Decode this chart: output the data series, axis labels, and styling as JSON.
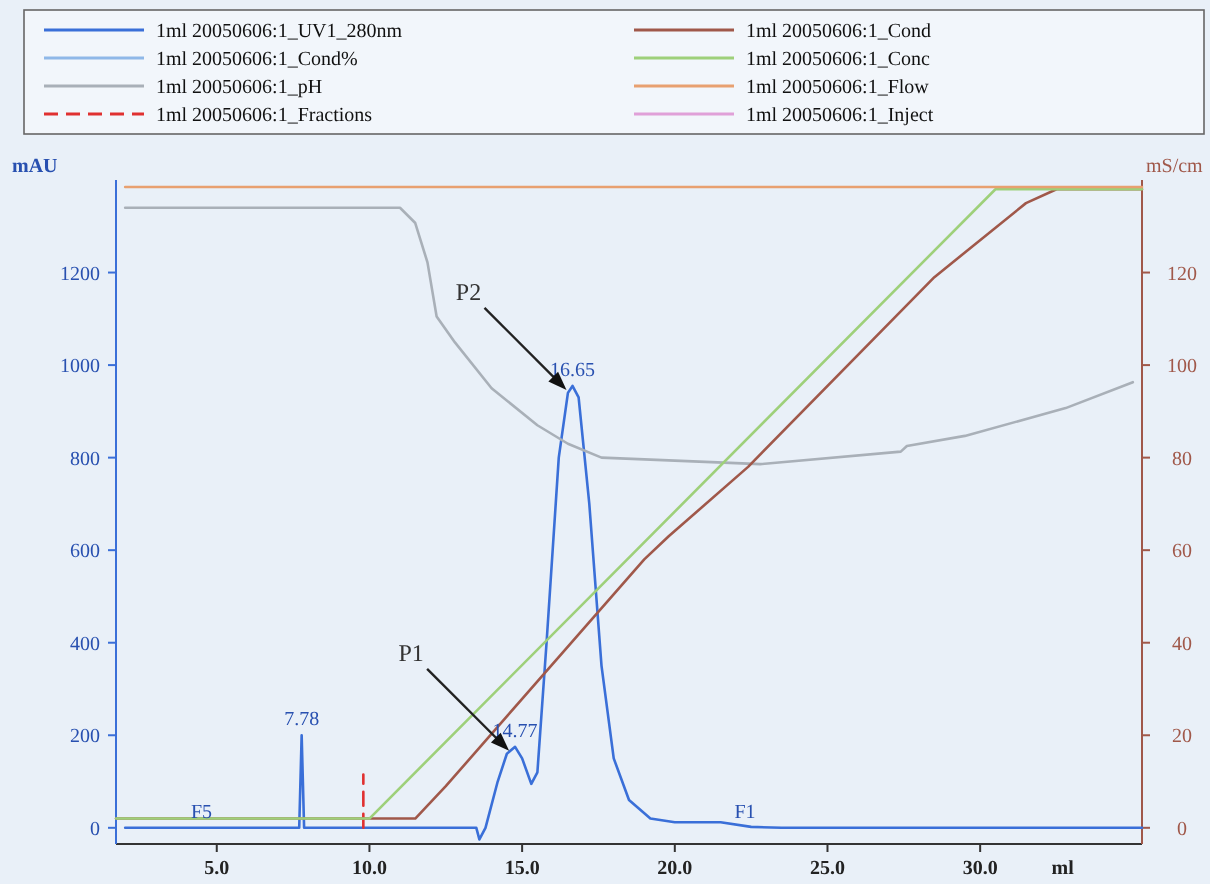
{
  "chart_data": {
    "type": "line",
    "xlabel": "ml",
    "ylabel": "mAU",
    "y2label": "mS/cm",
    "xlim": [
      1.7,
      35.3
    ],
    "ylim": [
      -35,
      1400
    ],
    "y2lim": [
      -3.5,
      140
    ],
    "xticks": [
      {
        "value": 5,
        "label": "5.0"
      },
      {
        "value": 10,
        "label": "10.0"
      },
      {
        "value": 15,
        "label": "15.0"
      },
      {
        "value": 20,
        "label": "20.0"
      },
      {
        "value": 25,
        "label": "25.0"
      },
      {
        "value": 30,
        "label": "30.0"
      }
    ],
    "yticks": [
      0,
      200,
      400,
      600,
      800,
      1000,
      1200
    ],
    "y2ticks": [
      0,
      20,
      40,
      60,
      80,
      100,
      120
    ],
    "grid": false,
    "legend": "top",
    "marker": "none",
    "series": [
      {
        "name": "1ml 20050606:1_UV1_280nm",
        "color": "#3a6fd8",
        "x": [
          2,
          7.7,
          7.78,
          7.86,
          13.5,
          13.6,
          13.8,
          14.2,
          14.5,
          14.77,
          15.0,
          15.3,
          15.5,
          15.8,
          16.2,
          16.5,
          16.65,
          16.85,
          17.2,
          17.6,
          18.0,
          18.5,
          19.2,
          20.0,
          21.5,
          22.5,
          23.5,
          35.3
        ],
        "values": [
          0,
          0,
          200,
          0,
          0,
          -25,
          0,
          100,
          160,
          175,
          150,
          95,
          120,
          400,
          800,
          940,
          955,
          930,
          700,
          350,
          150,
          60,
          20,
          12,
          12,
          2,
          0,
          0
        ]
      },
      {
        "name": "1ml 20050606:1_Cond%",
        "color": "#8fb8e8"
      },
      {
        "name": "1ml 20050606:1_pH",
        "color": "#a9b0b8",
        "x": [
          2.0,
          11.0,
          11.5,
          11.9,
          12.2,
          12.8,
          14.0,
          15.5,
          16.5,
          17.6,
          22.8,
          27.4,
          27.6,
          29.5,
          32.8,
          35.0
        ],
        "values": [
          1340,
          1340,
          1307,
          1222,
          1105,
          1049,
          950,
          870,
          830,
          800,
          786,
          813,
          825,
          847,
          907,
          963
        ]
      },
      {
        "name": "1ml 20050606:1_Fractions",
        "color": "#e03030",
        "line_style": "dashed",
        "x": [
          9.8,
          9.8
        ],
        "values": [
          0,
          115
        ]
      },
      {
        "name": "1ml 20050606:1_Cond",
        "color": "#a0584a",
        "axis": "y2",
        "x": [
          1.7,
          11.5,
          12.5,
          19.0,
          19.8,
          22.4,
          28.5,
          31.5,
          32.5,
          35.3
        ],
        "values": [
          2,
          2,
          9,
          58,
          63,
          78,
          119,
          135,
          138,
          138
        ]
      },
      {
        "name": "1ml 20050606:1_Conc",
        "color": "#9ed07a",
        "axis": "y2",
        "x": [
          1.7,
          10.0,
          30.5,
          35.3
        ],
        "values": [
          2,
          2,
          138,
          138
        ]
      },
      {
        "name": "1ml 20050606:1_Flow",
        "color": "#e8a070",
        "x": [
          2.0,
          35.3
        ],
        "values": [
          1385,
          1385
        ]
      },
      {
        "name": "1ml 20050606:1_Inject",
        "color": "#e0a0d8"
      }
    ],
    "annotations": [
      {
        "text": "7.78",
        "x": 7.78,
        "y": 200
      },
      {
        "text": "14.77",
        "x": 14.77,
        "y": 175
      },
      {
        "text": "16.65",
        "x": 16.65,
        "y": 955
      },
      {
        "text": "P1",
        "x": 14.77,
        "y": 175
      },
      {
        "text": "P2",
        "x": 16.65,
        "y": 955
      },
      {
        "text": "F5",
        "x": 4.5,
        "y": 0
      },
      {
        "text": "F1",
        "x": 22.3,
        "y": 0
      }
    ]
  }
}
